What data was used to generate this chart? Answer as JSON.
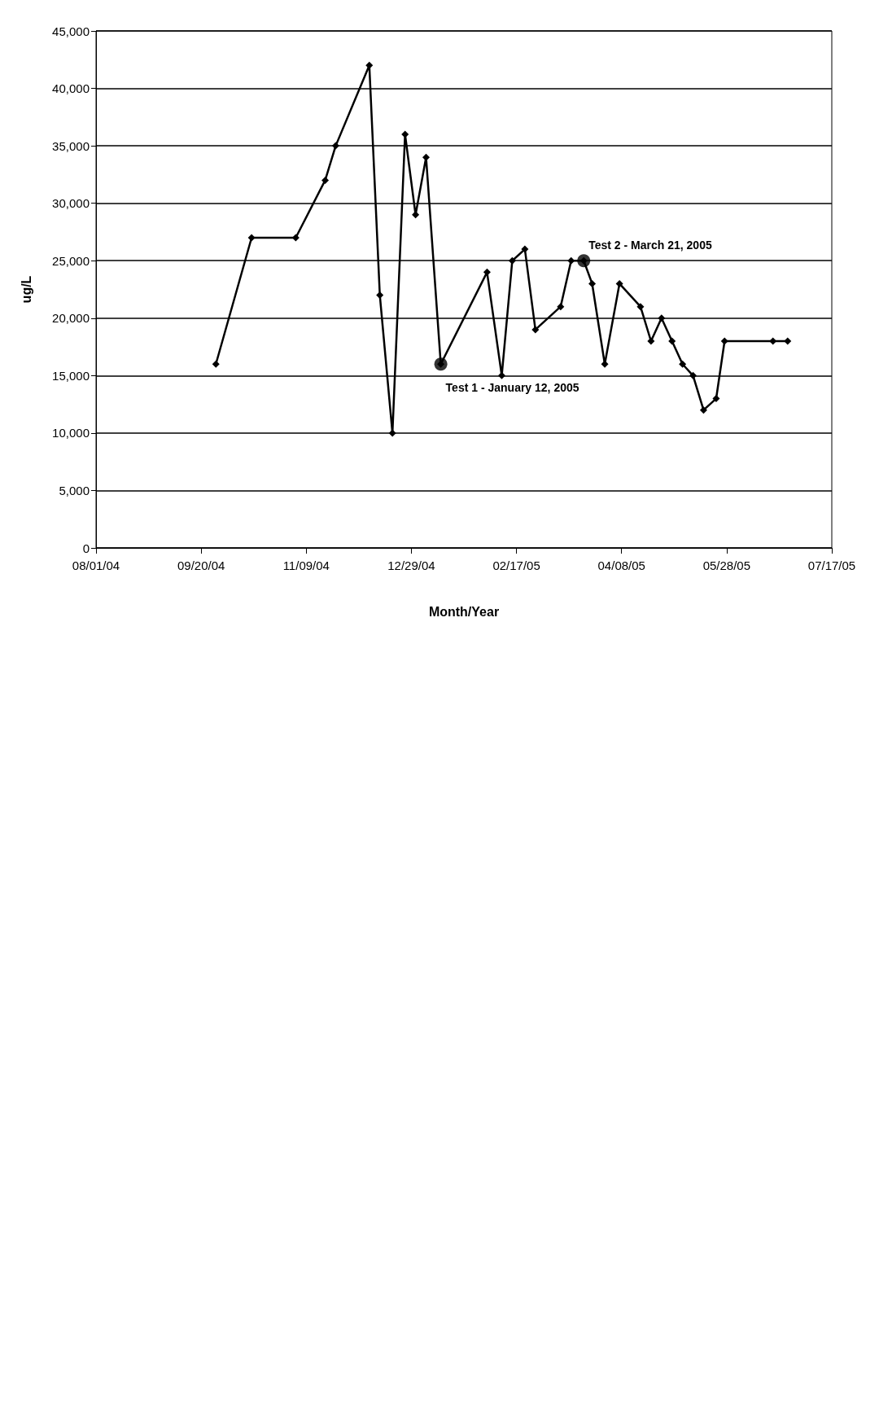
{
  "chart_data": {
    "type": "line",
    "xlabel": "Month/Year",
    "ylabel": "ug/L",
    "marker": "diamond",
    "line_style": "solid",
    "grid": "y",
    "xlim": [
      "2004-08-01",
      "2005-07-17"
    ],
    "xticks": [
      {
        "value": "2004-08-01",
        "label": "08/01/04"
      },
      {
        "value": "2004-09-20",
        "label": "09/20/04"
      },
      {
        "value": "2004-11-09",
        "label": "11/09/04"
      },
      {
        "value": "2004-12-29",
        "label": "12/29/04"
      },
      {
        "value": "2005-02-17",
        "label": "02/17/05"
      },
      {
        "value": "2005-04-08",
        "label": "04/08/05"
      },
      {
        "value": "2005-05-28",
        "label": "05/28/05"
      },
      {
        "value": "2005-07-17",
        "label": "07/17/05"
      }
    ],
    "ylim": [
      0,
      45000
    ],
    "yticks": [
      0,
      {
        "value": 5000,
        "label": "5,000"
      },
      {
        "value": 10000,
        "label": "10,000"
      },
      {
        "value": 15000,
        "label": "15,000"
      },
      {
        "value": 20000,
        "label": "20,000"
      },
      {
        "value": 25000,
        "label": "25,000"
      },
      {
        "value": 30000,
        "label": "30,000"
      },
      {
        "value": 35000,
        "label": "35,000"
      },
      {
        "value": 40000,
        "label": "40,000"
      },
      {
        "value": 45000,
        "label": "45,000"
      }
    ],
    "series": [
      {
        "color": "#000000",
        "x": [
          "2004-09-27",
          "2004-10-14",
          "2004-11-04",
          "2004-11-18",
          "2004-11-23",
          "2004-12-09",
          "2004-12-14",
          "2004-12-20",
          "2004-12-26",
          "2004-12-31",
          "2005-01-05",
          "2005-01-12",
          "2005-02-03",
          "2005-02-10",
          "2005-02-15",
          "2005-02-21",
          "2005-02-26",
          "2005-03-10",
          "2005-03-15",
          "2005-03-21",
          "2005-03-25",
          "2005-03-31",
          "2005-04-07",
          "2005-04-17",
          "2005-04-22",
          "2005-04-27",
          "2005-05-02",
          "2005-05-07",
          "2005-05-12",
          "2005-05-17",
          "2005-05-23",
          "2005-05-27",
          "2005-06-19",
          "2005-06-26"
        ],
        "values": [
          16000,
          27000,
          27000,
          32000,
          35000,
          42000,
          22000,
          10000,
          36000,
          29000,
          34000,
          16000,
          24000,
          15000,
          25000,
          26000,
          19000,
          21000,
          25000,
          25000,
          23000,
          16000,
          23000,
          21000,
          18000,
          20000,
          18000,
          16000,
          15000,
          12000,
          13000,
          18000,
          18000,
          18000
        ]
      },
      {
        "type": "scatter",
        "marker": "circle",
        "color": "#000000",
        "x": [
          "2005-01-12",
          "2005-03-21"
        ],
        "values": [
          16000,
          25000
        ]
      }
    ],
    "annotations": [
      {
        "text": "Test 1 - January 12, 2005",
        "x": "2005-01-12",
        "y": 16000
      },
      {
        "text": "Test 2 - March 21, 2005",
        "x": "2005-03-21",
        "y": 25000
      }
    ]
  }
}
